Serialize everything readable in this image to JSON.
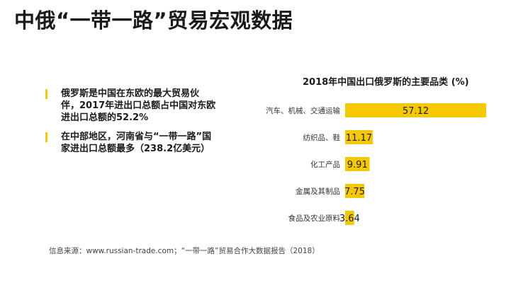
{
  "page": {
    "title": "中俄“一带一路”贸易宏观数据",
    "accent_color": "#f5c800"
  },
  "bullets": [
    {
      "text": "俄罗斯是中国在东欧的最大贸易伙伴，2017年进出口总额占中国对东欧进出口总额的52.2%"
    },
    {
      "text": "在中部地区，河南省与“一带一路”国家进出口总额最多（238.2亿美元）"
    }
  ],
  "source": "信息来源：www.russian-trade.com；“一带一路”贸易合作大数据报告（2018）",
  "chart_data": {
    "type": "bar",
    "orientation": "horizontal",
    "title": "2018年中国出口俄罗斯的主要品类 (%)",
    "categories": [
      "汽车、机械、交通运输",
      "纺织品、鞋",
      "化工产品",
      "金属及其制品",
      "食品及农业原料"
    ],
    "values": [
      57.12,
      11.17,
      9.91,
      7.75,
      3.64
    ],
    "value_labels": [
      "57.12",
      "11.17",
      "9.91",
      "7.75",
      "3.64"
    ],
    "bar_color": "#f5c800",
    "grid": false,
    "legend": "none"
  }
}
